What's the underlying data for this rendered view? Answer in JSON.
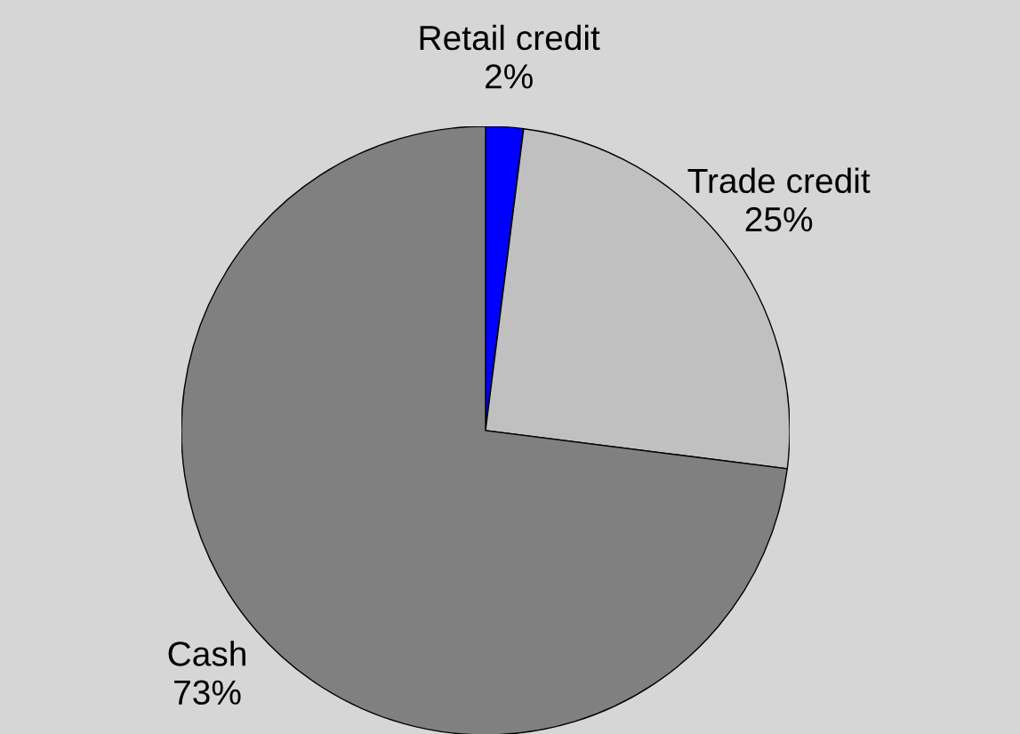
{
  "chart_data": {
    "type": "pie",
    "categories": [
      "Retail credit",
      "Trade credit",
      "Cash"
    ],
    "values": [
      2,
      25,
      73
    ],
    "value_labels": [
      "2%",
      "25%",
      "73%"
    ],
    "colors": [
      "#0000ff",
      "#c0c0c0",
      "#808080"
    ],
    "legend": false
  }
}
